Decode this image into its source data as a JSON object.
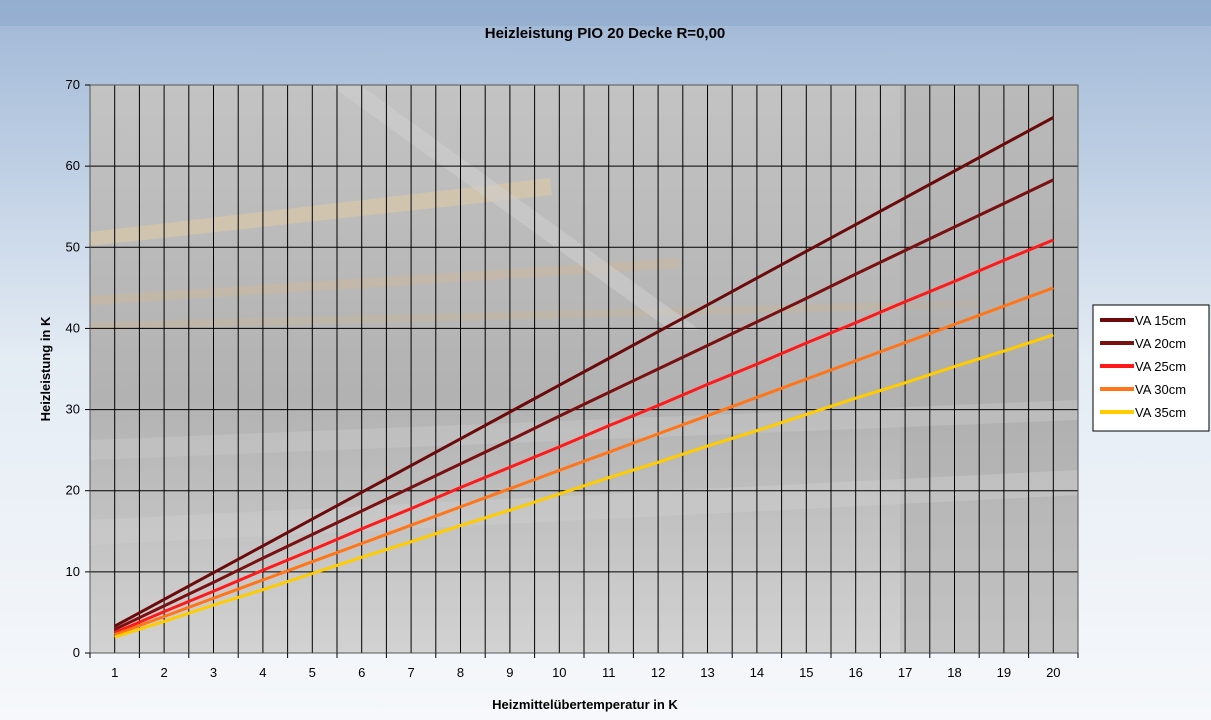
{
  "chart_data": {
    "type": "line",
    "title": "Heizleistung PIO 20 Decke R=0,00",
    "xlabel": "Heizmittelübertemperatur in K",
    "ylabel": "Heizleistung in K",
    "x": [
      1,
      2,
      3,
      4,
      5,
      6,
      7,
      8,
      9,
      10,
      11,
      12,
      13,
      14,
      15,
      16,
      17,
      18,
      19,
      20
    ],
    "ylim": [
      0,
      70
    ],
    "yticks": [
      0,
      10,
      20,
      30,
      40,
      50,
      60,
      70
    ],
    "grid": true,
    "legend_position": "right",
    "series": [
      {
        "name": "VA 15cm",
        "color": "#6b0a0a",
        "values": [
          3.3,
          6.6,
          9.9,
          13.2,
          16.5,
          19.8,
          23.1,
          26.4,
          29.7,
          33.0,
          36.3,
          39.6,
          42.9,
          46.2,
          49.5,
          52.8,
          56.1,
          59.4,
          62.7,
          66.0
        ]
      },
      {
        "name": "VA 20cm",
        "color": "#7a1010",
        "values": [
          2.9,
          5.8,
          8.7,
          11.7,
          14.6,
          17.5,
          20.4,
          23.3,
          26.2,
          29.2,
          32.1,
          35.0,
          37.9,
          40.8,
          43.7,
          46.7,
          49.6,
          52.5,
          55.4,
          58.3
        ]
      },
      {
        "name": "VA 25cm",
        "color": "#ff1a1a",
        "values": [
          2.5,
          5.1,
          7.6,
          10.2,
          12.7,
          15.3,
          17.8,
          20.4,
          22.9,
          25.4,
          28.0,
          30.5,
          33.1,
          35.6,
          38.2,
          40.7,
          43.3,
          45.8,
          48.4,
          50.9
        ]
      },
      {
        "name": "VA 30cm",
        "color": "#ff7518",
        "values": [
          2.25,
          4.5,
          6.75,
          9.0,
          11.25,
          13.5,
          15.75,
          18.0,
          20.25,
          22.5,
          24.75,
          27.0,
          29.25,
          31.5,
          33.75,
          36.0,
          38.25,
          40.5,
          42.75,
          45.0
        ]
      },
      {
        "name": "VA 35cm",
        "color": "#ffcc00",
        "values": [
          1.96,
          3.9,
          5.9,
          7.8,
          9.8,
          11.8,
          13.7,
          15.7,
          17.6,
          19.6,
          21.6,
          23.5,
          25.5,
          27.4,
          29.4,
          31.4,
          33.3,
          35.3,
          37.2,
          39.2
        ]
      }
    ]
  }
}
